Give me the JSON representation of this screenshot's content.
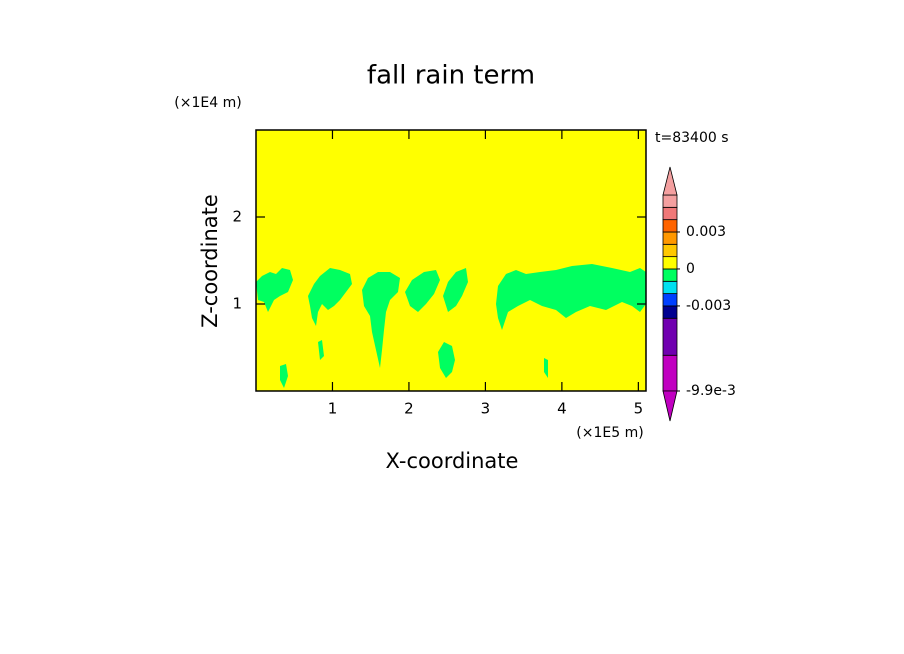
{
  "chart_data": {
    "type": "contour",
    "title": "fall rain term",
    "x_label": "X-coordinate",
    "y_label": "Z-coordinate",
    "x_unit": "(×1E5 m)",
    "y_unit": "(×1E4 m)",
    "time_label": "t=83400 s",
    "xlim": [
      0,
      5.1
    ],
    "ylim": [
      0,
      3
    ],
    "xticks": [
      1,
      2,
      3,
      4,
      5
    ],
    "yticks": [
      1,
      2
    ],
    "colorbar": {
      "levels": [
        -0.0099,
        -0.007,
        -0.004,
        -0.003,
        -0.002,
        -0.001,
        0,
        0.001,
        0.002,
        0.003,
        0.004,
        0.005,
        0.006
      ],
      "colors": [
        "#c000c0",
        "#7000b0",
        "#000090",
        "#0040ff",
        "#00e0f0",
        "#00ff60",
        "#ffff00",
        "#ffc800",
        "#ff9800",
        "#ff6400",
        "#f07878",
        "#f4a0a0"
      ],
      "under_color": "#c000c0",
      "over_color": "#f4a0a0",
      "ticks": [
        0.003,
        0,
        -0.003,
        {
          "value": -0.0099,
          "label": "-9.9e-3"
        }
      ]
    }
  }
}
